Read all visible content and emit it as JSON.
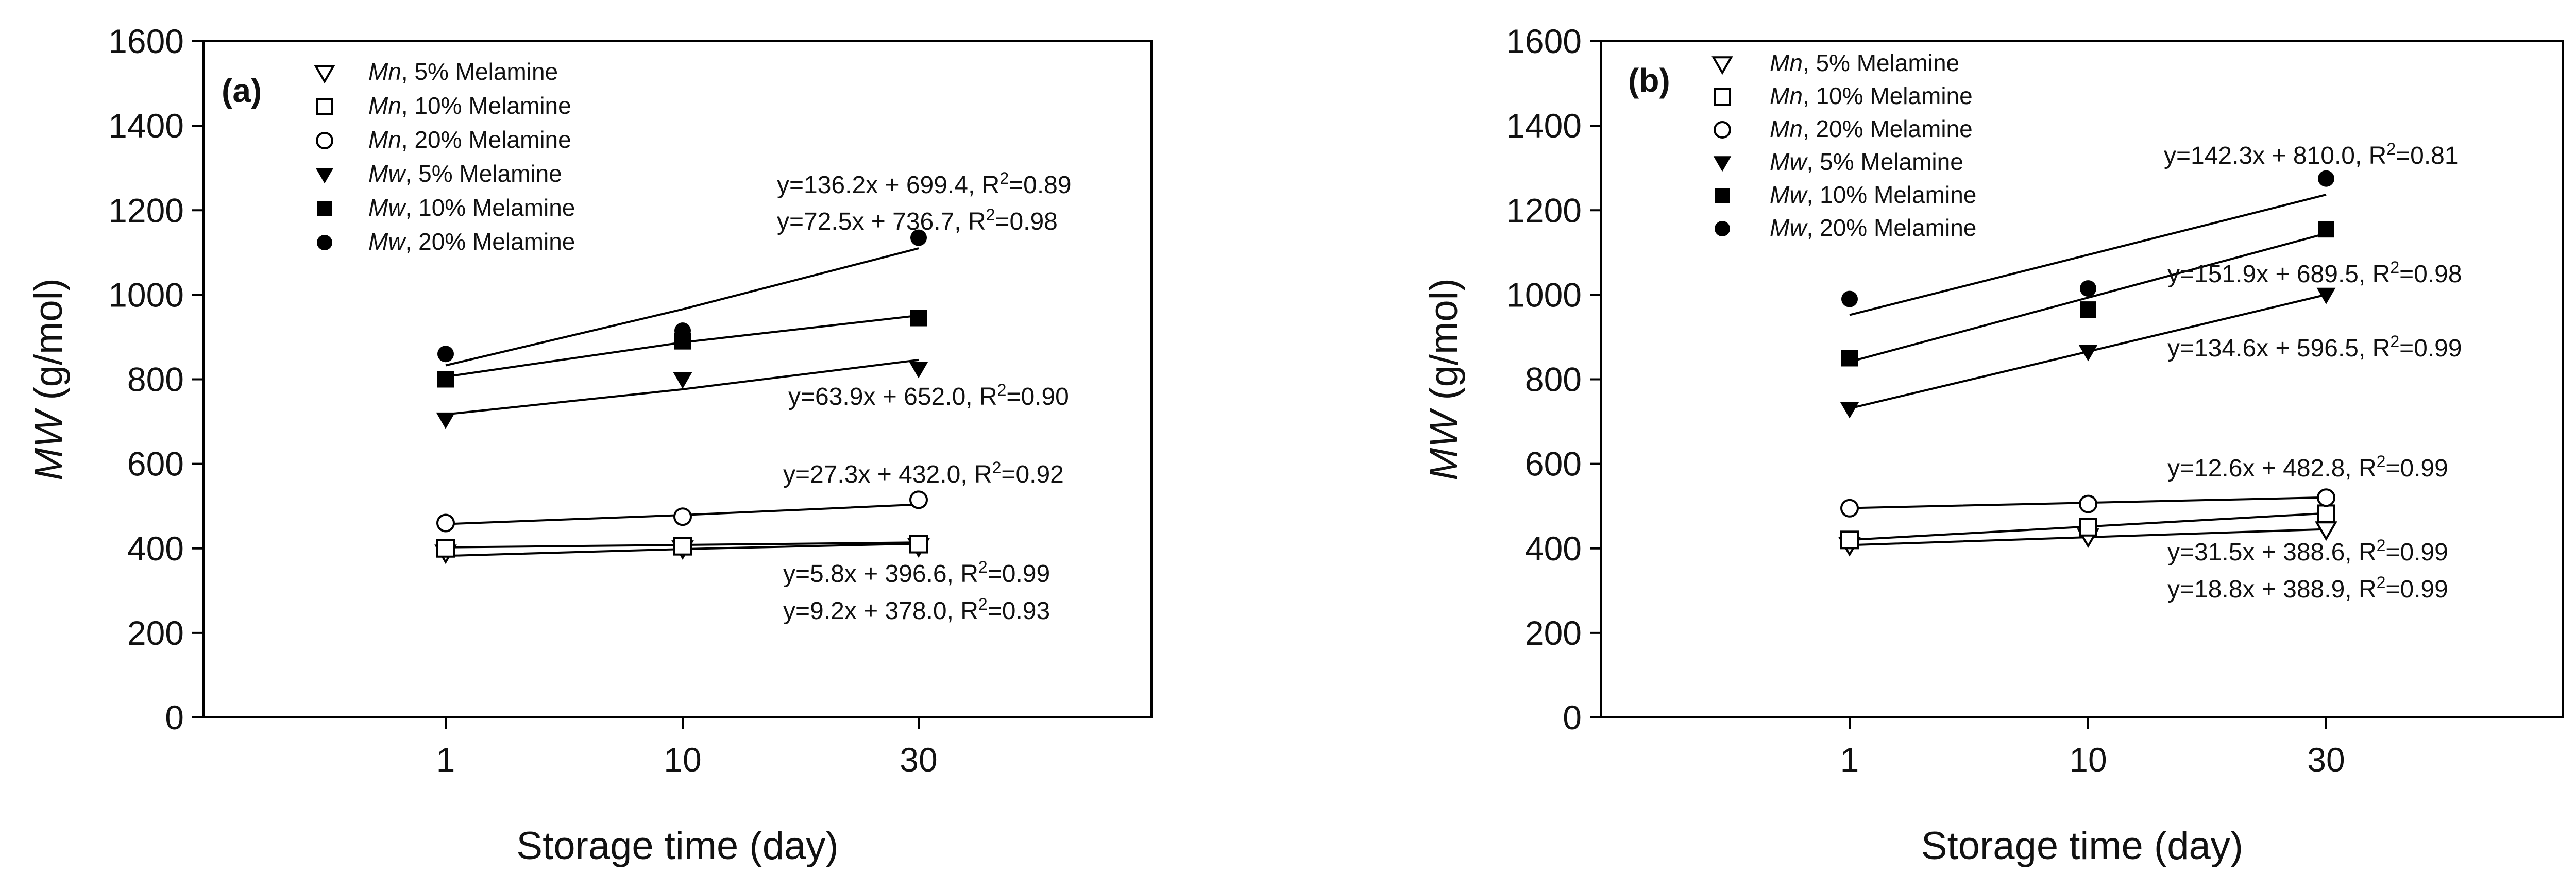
{
  "chart_data": [
    {
      "panel": "(a)",
      "type": "scatter",
      "x_categories": [
        "1",
        "10",
        "30"
      ],
      "xlabel": "Storage time (day)",
      "ylabel_italic": "MW",
      "ylabel_rest": " (g/mol)",
      "ylim": [
        0,
        1600
      ],
      "yticks": [
        0,
        200,
        400,
        600,
        800,
        1000,
        1200,
        1400,
        1600
      ],
      "grid": false,
      "legend_position": "top-left",
      "series": [
        {
          "prefix": "Mn",
          "suffix": ", 5% Melamine",
          "marker": "triangle-down-open",
          "values": [
            390,
            400,
            405
          ]
        },
        {
          "prefix": "Mn",
          "suffix": ", 10% Melamine",
          "marker": "square-open",
          "values": [
            400,
            405,
            410
          ]
        },
        {
          "prefix": "Mn",
          "suffix": ", 20% Melamine",
          "marker": "circle-open",
          "values": [
            460,
            475,
            515
          ]
        },
        {
          "prefix": "Mw",
          "suffix": ", 5% Melamine",
          "marker": "triangle-down-filled",
          "values": [
            705,
            800,
            825
          ]
        },
        {
          "prefix": "Mw",
          "suffix": ", 10% Melamine",
          "marker": "square-filled",
          "values": [
            800,
            890,
            945
          ]
        },
        {
          "prefix": "Mw",
          "suffix": ", 20% Melamine",
          "marker": "circle-filled",
          "values": [
            860,
            915,
            1135
          ]
        }
      ],
      "fit_lines": [
        {
          "values": [
            382.3,
            398.4,
            411.3
          ]
        },
        {
          "values": [
            402.4,
            408.2,
            414.0
          ]
        },
        {
          "values": [
            457.5,
            478.9,
            503.9
          ]
        },
        {
          "values": [
            717.0,
            776.4,
            845.8
          ]
        },
        {
          "values": [
            806.2,
            887.4,
            951.0
          ]
        },
        {
          "values": [
            832.9,
            965.8,
            1110.0
          ]
        }
      ],
      "equations": [
        {
          "pre": "y=136.2x + 699.4, R",
          "sup": "2",
          "post": "=0.89"
        },
        {
          "pre": "y=72.5x + 736.7, R",
          "sup": "2",
          "post": "=0.98"
        },
        {
          "pre": "y=63.9x + 652.0, R",
          "sup": "2",
          "post": "=0.90"
        },
        {
          "pre": "y=27.3x + 432.0, R",
          "sup": "2",
          "post": "=0.92"
        },
        {
          "pre": "y=5.8x + 396.6, R",
          "sup": "2",
          "post": "=0.99"
        },
        {
          "pre": "y=9.2x + 378.0, R",
          "sup": "2",
          "post": "=0.93"
        }
      ]
    },
    {
      "panel": "(b)",
      "type": "scatter",
      "x_categories": [
        "1",
        "10",
        "30"
      ],
      "xlabel": "Storage time (day)",
      "ylabel_italic": "MW",
      "ylabel_rest": " (g/mol)",
      "ylim": [
        0,
        1600
      ],
      "yticks": [
        0,
        200,
        400,
        600,
        800,
        1000,
        1200,
        1400,
        1600
      ],
      "grid": false,
      "legend_position": "top-left",
      "series": [
        {
          "prefix": "Mn",
          "suffix": ", 5% Melamine",
          "marker": "triangle-down-open",
          "values": [
            408,
            428,
            445
          ]
        },
        {
          "prefix": "Mn",
          "suffix": ", 10% Melamine",
          "marker": "square-open",
          "values": [
            420,
            450,
            482
          ]
        },
        {
          "prefix": "Mn",
          "suffix": ",  20% Melamine",
          "marker": "circle-open",
          "values": [
            495,
            505,
            520
          ]
        },
        {
          "prefix": "Mw",
          "suffix": ", 5% Melamine",
          "marker": "triangle-down-filled",
          "values": [
            730,
            865,
            1000
          ]
        },
        {
          "prefix": "Mw",
          "suffix": ", 10% Melamine",
          "marker": "square-filled",
          "values": [
            850,
            965,
            1155
          ]
        },
        {
          "prefix": "Mw",
          "suffix": ", 20% Melamine",
          "marker": "circle-filled",
          "values": [
            990,
            1015,
            1275
          ]
        }
      ],
      "fit_lines": [
        {
          "values": [
            407.7,
            426.5,
            445.3
          ]
        },
        {
          "values": [
            420.1,
            451.6,
            483.1
          ]
        },
        {
          "values": [
            495.4,
            508.0,
            520.6
          ]
        },
        {
          "values": [
            731.1,
            865.7,
            1000.3
          ]
        },
        {
          "values": [
            841.4,
            993.3,
            1145.2
          ]
        },
        {
          "values": [
            952.3,
            1094.6,
            1236.9
          ]
        }
      ],
      "equations": [
        {
          "pre": "y=142.3x + 810.0, R",
          "sup": "2",
          "post": "=0.81"
        },
        {
          "pre": "y=151.9x + 689.5, R",
          "sup": "2",
          "post": "=0.98"
        },
        {
          "pre": "y=134.6x + 596.5, R",
          "sup": "2",
          "post": "=0.99"
        },
        {
          "pre": "y=12.6x + 482.8, R",
          "sup": "2",
          "post": "=0.99"
        },
        {
          "pre": "y=31.5x + 388.6, R",
          "sup": "2",
          "post": "=0.99"
        },
        {
          "pre": "y=18.8x + 388.9, R",
          "sup": "2",
          "post": "=0.99"
        }
      ]
    }
  ]
}
